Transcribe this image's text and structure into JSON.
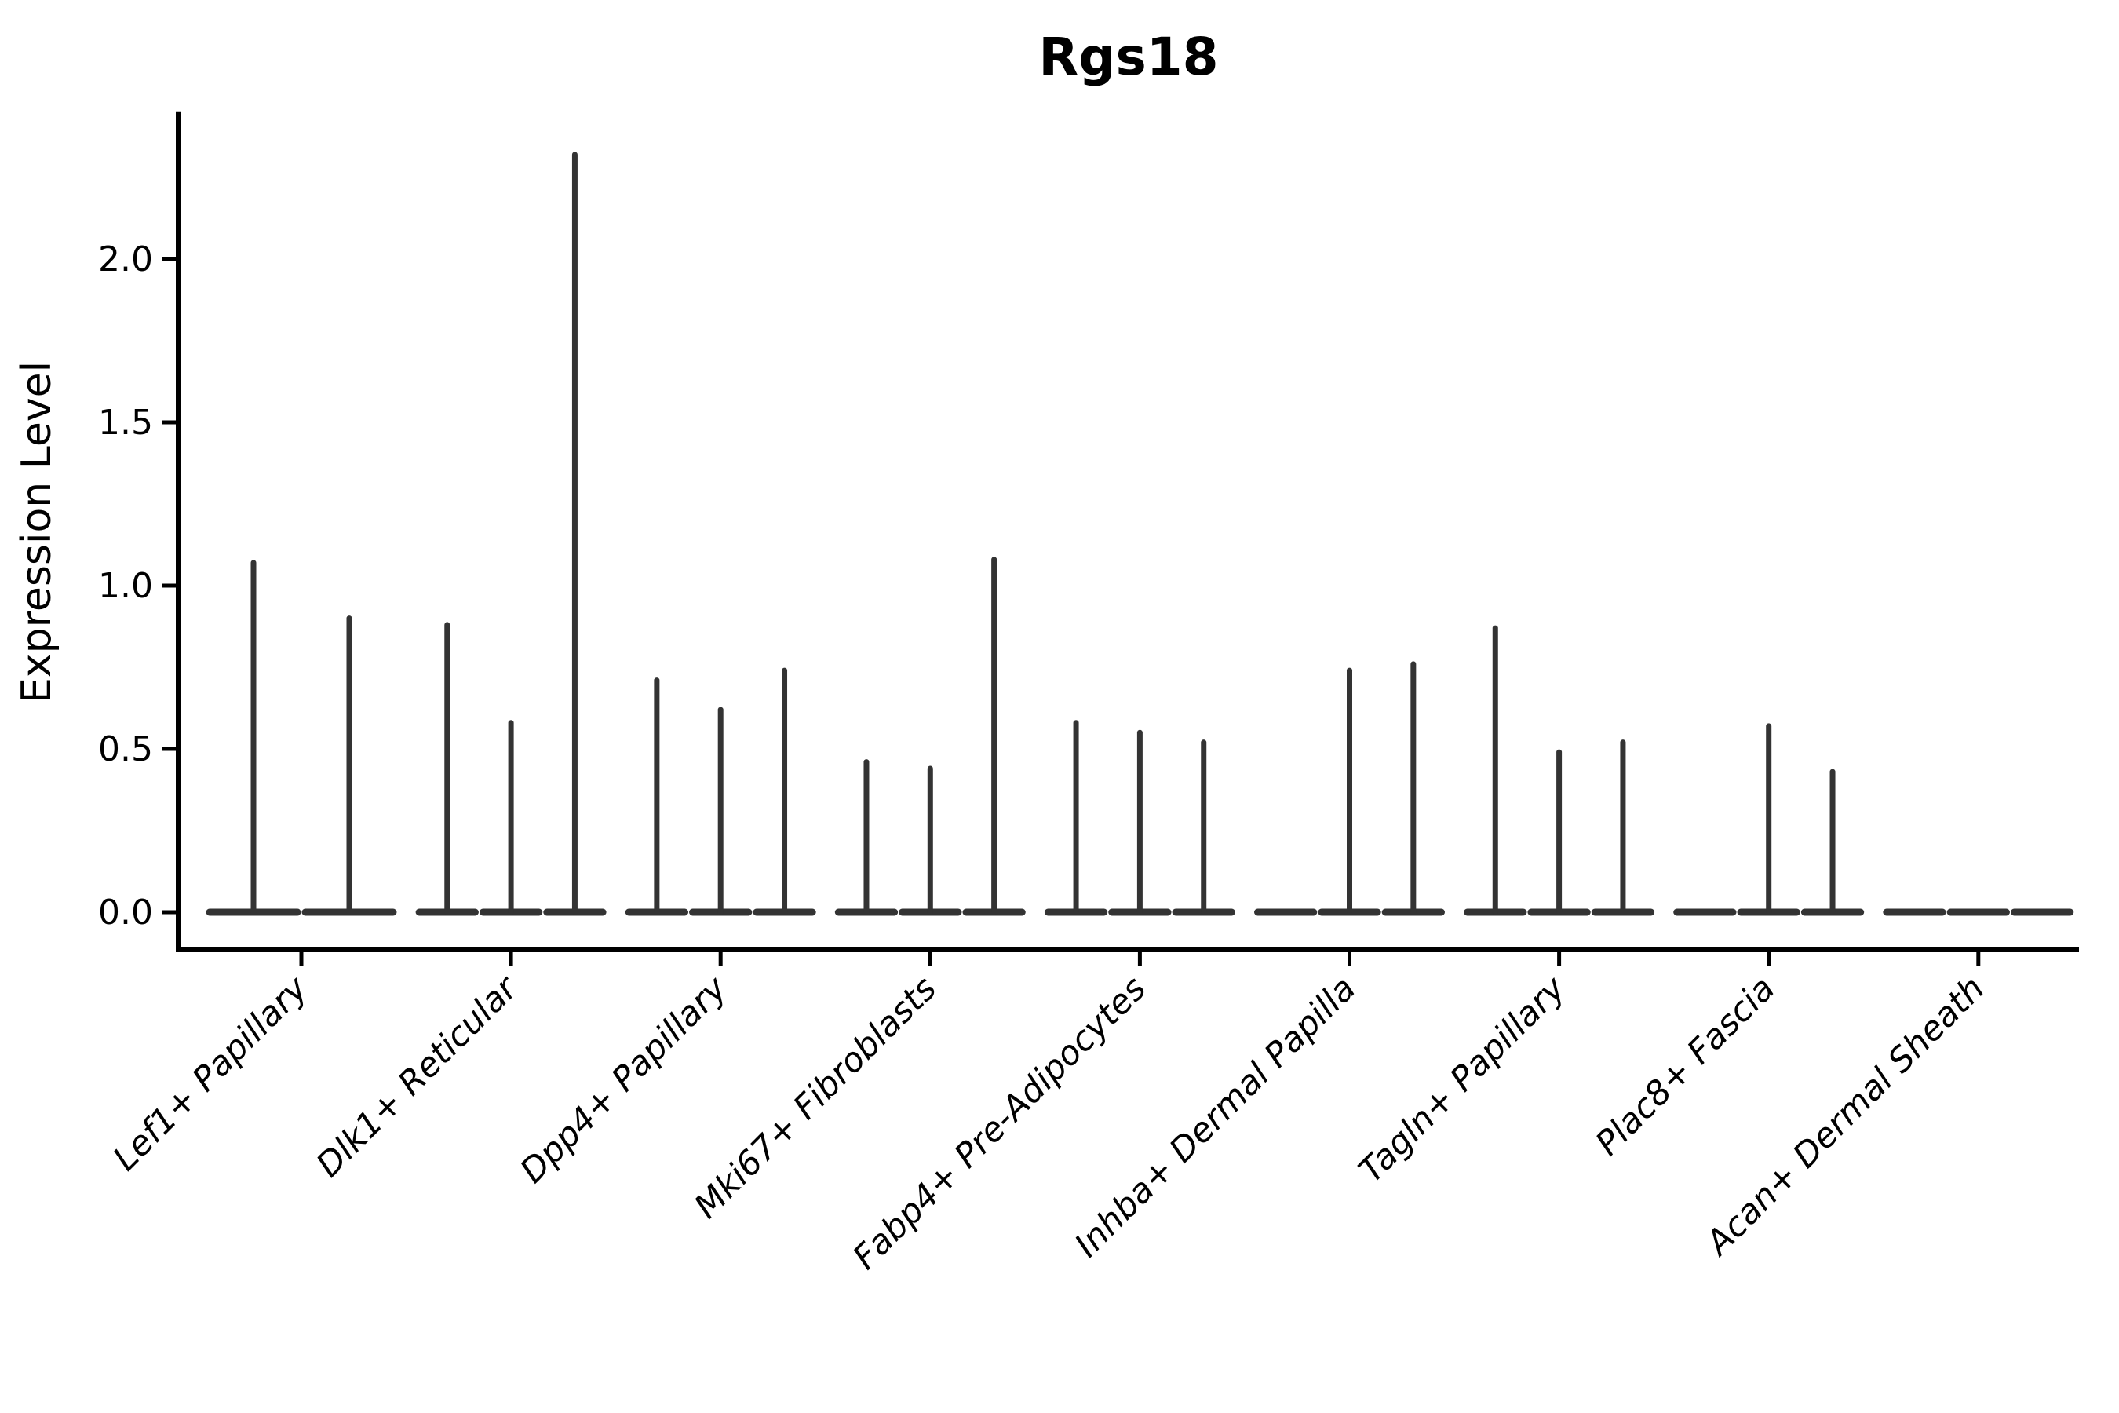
{
  "chart_data": {
    "type": "violin",
    "title": "Rgs18",
    "ylabel": "Expression Level",
    "xlabel": "",
    "yticks": [
      0.0,
      0.5,
      1.0,
      1.5,
      2.0
    ],
    "ylim": [
      -0.115,
      2.45
    ],
    "grid": false,
    "legend": "none",
    "description": "Stacked thin violin plot (single-cell expression of Rgs18 per fibroblast cluster); each category holds 2-3 near-flat violins whose peaks are the max expression spikes, 0 = flat baseline",
    "categories": [
      "Lef1+ Papillary",
      "Dlk1+ Reticular",
      "Dpp4+ Papillary",
      "Mki67+ Fibroblasts",
      "Fabp4+ Pre-Adipocytes",
      "Inhba+ Dermal Papilla",
      "Tagln+ Papillary",
      "Plac8+ Fascia",
      "Acan+ Dermal Sheath"
    ],
    "groups": [
      {
        "label": "Lef1+ Papillary",
        "violin_peaks": [
          1.07,
          0.9
        ]
      },
      {
        "label": "Dlk1+ Reticular",
        "violin_peaks": [
          0.88,
          0.58,
          2.32
        ]
      },
      {
        "label": "Dpp4+ Papillary",
        "violin_peaks": [
          0.71,
          0.62,
          0.74
        ]
      },
      {
        "label": "Mki67+ Fibroblasts",
        "violin_peaks": [
          0.46,
          0.44,
          1.08
        ]
      },
      {
        "label": "Fabp4+ Pre-Adipocytes",
        "violin_peaks": [
          0.58,
          0.55,
          0.52
        ]
      },
      {
        "label": "Inhba+ Dermal Papilla",
        "violin_peaks": [
          0.0,
          0.74,
          0.76
        ]
      },
      {
        "label": "Tagln+ Papillary",
        "violin_peaks": [
          0.87,
          0.49,
          0.52
        ]
      },
      {
        "label": "Plac8+ Fascia",
        "violin_peaks": [
          0.0,
          0.57,
          0.43
        ]
      },
      {
        "label": "Acan+ Dermal Sheath",
        "violin_peaks": [
          0.0,
          0.0,
          0.0
        ]
      }
    ],
    "colors": {
      "spine": "#000000",
      "tick": "#000000",
      "text": "#000000",
      "violin": "#333333"
    }
  }
}
